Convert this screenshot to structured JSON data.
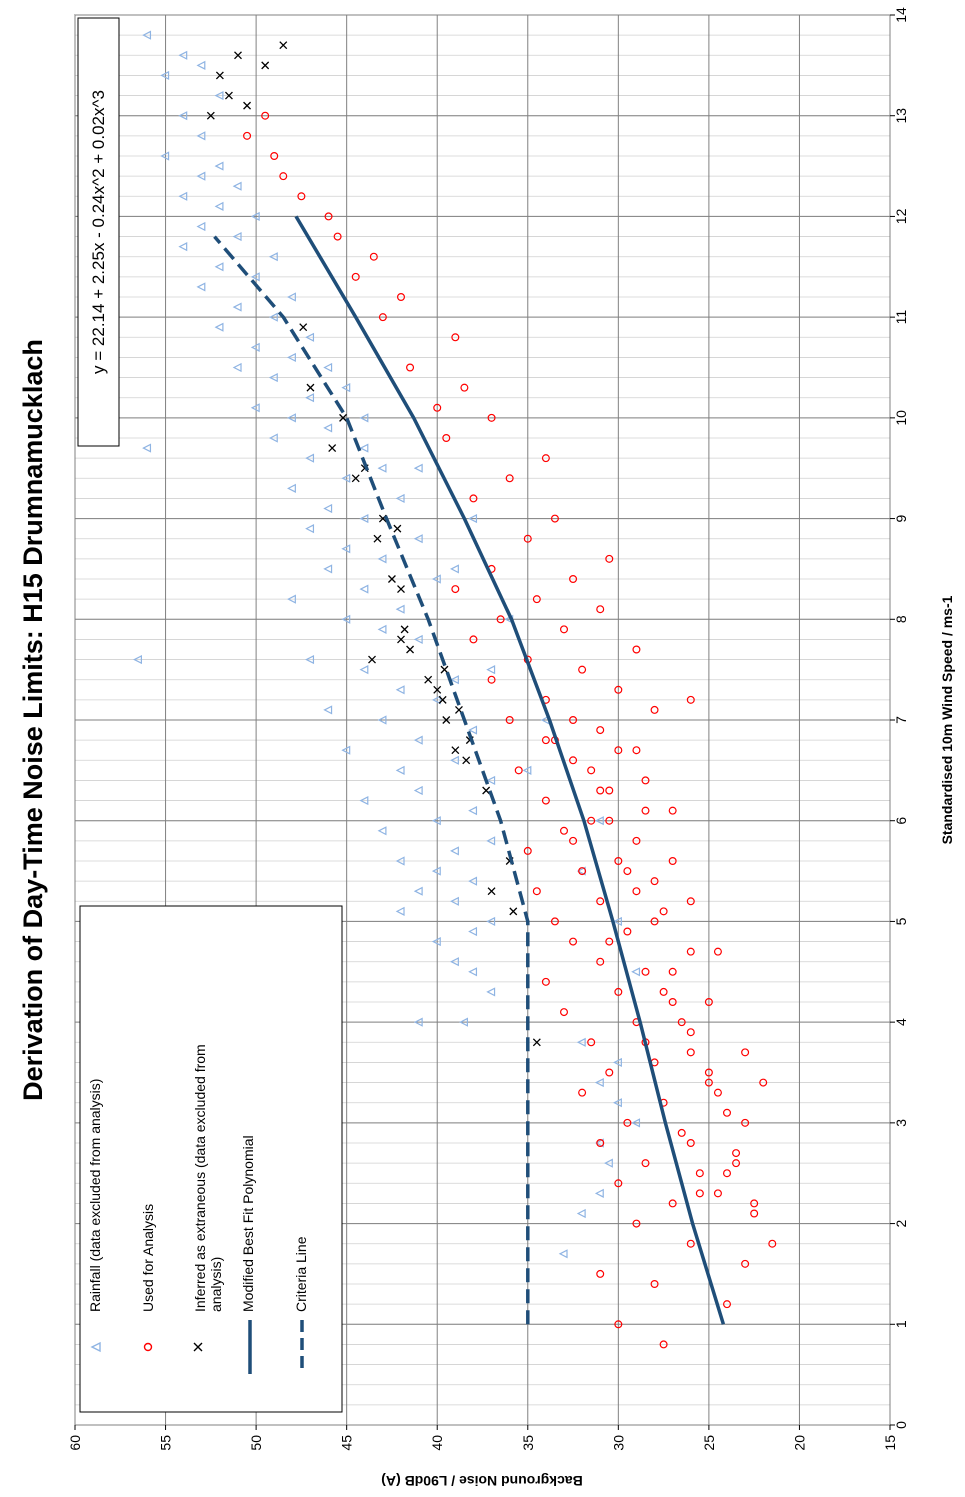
{
  "chart_data": {
    "type": "scatter",
    "title": "Derivation of Day-Time Noise Limits: H15 Drumnamucklach",
    "xlabel": "Standardised 10m Wind Speed / ms-1",
    "ylabel": "Background Noise / L90dB (A)",
    "xlim": [
      0,
      14
    ],
    "ylim": [
      15,
      60
    ],
    "x_ticks": [
      "0",
      "1",
      "2",
      "3",
      "4",
      "5",
      "6",
      "7",
      "8",
      "9",
      "10",
      "11",
      "12",
      "13",
      "14"
    ],
    "y_ticks": [
      "15",
      "20",
      "25",
      "30",
      "35",
      "40",
      "45",
      "50",
      "55",
      "60"
    ],
    "x_minor_step": 0.2,
    "grid": true,
    "orientation": "rotated-90-clockwise",
    "equation": "y = 22.14 + 2.25x - 0.24x^2 + 0.02x^3",
    "legend": {
      "placement": "bottom-left",
      "items": [
        {
          "label": "Rainfall (data excluded from analysis)",
          "marker": "triangle-icon",
          "color": "#8fb4e3"
        },
        {
          "label": "Used for Analysis",
          "marker": "circle-icon",
          "color": "#ff0000"
        },
        {
          "label": "Inferred as extraneous (data excluded from analysis)",
          "marker": "cross-icon",
          "color": "#000000"
        },
        {
          "label": "Modified Best Fit Polynomial",
          "marker": "solid-line-icon",
          "color": "#1f4e79"
        },
        {
          "label": "Criteria Line",
          "marker": "dashed-line-icon",
          "color": "#1f4e79"
        }
      ]
    },
    "series": [
      {
        "name": "Rainfall (data excluded from analysis)",
        "kind": "scatter",
        "marker": "triangle",
        "color": "#8fb4e3",
        "x": [
          1.7,
          2.1,
          2.3,
          2.6,
          2.8,
          3.0,
          3.2,
          3.4,
          3.6,
          3.8,
          4.0,
          4.0,
          4.3,
          4.5,
          4.6,
          4.8,
          4.9,
          5.0,
          5.1,
          5.2,
          5.3,
          5.4,
          5.5,
          5.6,
          5.7,
          5.8,
          5.9,
          6.0,
          6.1,
          6.2,
          6.3,
          6.4,
          6.5,
          6.6,
          6.7,
          6.8,
          6.9,
          7.0,
          7.1,
          7.2,
          7.3,
          7.4,
          7.5,
          7.6,
          7.6,
          7.8,
          7.9,
          8.0,
          8.1,
          8.2,
          8.3,
          8.4,
          8.5,
          8.6,
          8.7,
          8.8,
          8.9,
          9.0,
          9.1,
          9.2,
          9.3,
          9.4,
          9.5,
          9.6,
          9.7,
          9.7,
          9.8,
          9.9,
          10.0,
          10.0,
          10.1,
          10.2,
          10.3,
          10.4,
          10.5,
          10.5,
          10.6,
          10.7,
          10.8,
          10.9,
          11.0,
          11.1,
          11.2,
          11.3,
          11.4,
          11.5,
          11.6,
          11.7,
          11.8,
          11.9,
          12.0,
          12.1,
          12.2,
          12.3,
          12.4,
          12.5,
          12.6,
          12.8,
          13.0,
          13.2,
          13.4,
          13.5,
          13.6,
          13.8,
          5.0,
          6.0,
          7.0,
          8.0,
          9.0,
          4.5,
          5.5,
          6.5,
          7.5,
          8.5,
          9.5
        ],
        "y": [
          33.0,
          32.0,
          31.0,
          30.5,
          31.0,
          29.0,
          30.0,
          31.0,
          30.0,
          32.0,
          41.0,
          38.5,
          37.0,
          38.0,
          39.0,
          40.0,
          38.0,
          37.0,
          42.0,
          39.0,
          41.0,
          38.0,
          40.0,
          42.0,
          39.0,
          37.0,
          43.0,
          40.0,
          38.0,
          44.0,
          41.0,
          37.0,
          42.0,
          39.0,
          45.0,
          41.0,
          38.0,
          43.0,
          46.0,
          40.0,
          42.0,
          39.0,
          44.0,
          47.0,
          56.5,
          41.0,
          43.0,
          45.0,
          42.0,
          48.0,
          44.0,
          40.0,
          46.0,
          43.0,
          45.0,
          41.0,
          47.0,
          44.0,
          46.0,
          42.0,
          48.0,
          45.0,
          43.0,
          47.0,
          56.0,
          44.0,
          49.0,
          46.0,
          48.0,
          44.0,
          50.0,
          47.0,
          45.0,
          49.0,
          51.0,
          46.0,
          48.0,
          50.0,
          47.0,
          52.0,
          49.0,
          51.0,
          48.0,
          53.0,
          50.0,
          52.0,
          49.0,
          54.0,
          51.0,
          53.0,
          50.0,
          52.0,
          54.0,
          51.0,
          53.0,
          52.0,
          55.0,
          53.0,
          54.0,
          52.0,
          55.0,
          53.0,
          54.0,
          56.0,
          30.0,
          31.0,
          34.0,
          36.0,
          38.0,
          29.0,
          32.0,
          35.0,
          37.0,
          39.0,
          41.0
        ]
      },
      {
        "name": "Used for Analysis",
        "kind": "scatter",
        "marker": "circle",
        "color": "#ff0000",
        "x": [
          0.8,
          1.0,
          1.2,
          1.4,
          1.5,
          1.6,
          1.8,
          2.0,
          2.1,
          2.2,
          2.3,
          2.4,
          2.5,
          2.6,
          2.7,
          2.8,
          2.9,
          3.0,
          3.1,
          3.2,
          3.3,
          3.4,
          3.5,
          3.6,
          3.7,
          3.8,
          3.9,
          4.0,
          4.1,
          4.2,
          4.3,
          4.4,
          4.5,
          4.6,
          4.7,
          4.8,
          4.9,
          5.0,
          5.1,
          5.2,
          5.3,
          5.4,
          5.5,
          5.6,
          5.7,
          5.8,
          5.9,
          6.0,
          6.1,
          6.2,
          6.3,
          6.4,
          6.5,
          6.6,
          6.7,
          6.8,
          6.9,
          7.0,
          7.1,
          7.2,
          7.3,
          7.4,
          7.5,
          7.6,
          7.7,
          7.8,
          7.9,
          8.0,
          8.1,
          8.2,
          8.3,
          8.4,
          8.5,
          8.6,
          8.8,
          9.0,
          9.2,
          9.4,
          9.6,
          9.8,
          10.0,
          10.1,
          10.3,
          10.5,
          10.8,
          11.0,
          11.2,
          11.4,
          11.6,
          11.8,
          12.0,
          12.2,
          12.4,
          12.6,
          12.8,
          13.0,
          2.2,
          2.5,
          3.0,
          3.5,
          4.0,
          4.5,
          5.0,
          5.5,
          6.0,
          6.5,
          7.0,
          2.3,
          2.8,
          3.3,
          3.8,
          4.3,
          4.8,
          5.3,
          5.8,
          6.3,
          6.8,
          7.2,
          1.8,
          2.6,
          3.4,
          4.2,
          5.6,
          6.1,
          6.7,
          5.2,
          4.7,
          3.7
        ],
        "y": [
          27.5,
          30.0,
          24.0,
          28.0,
          31.0,
          23.0,
          26.0,
          29.0,
          22.5,
          27.0,
          24.5,
          30.0,
          25.5,
          28.5,
          23.5,
          31.0,
          26.5,
          29.5,
          24.0,
          27.5,
          32.0,
          25.0,
          30.5,
          28.0,
          23.0,
          31.5,
          26.0,
          29.0,
          33.0,
          27.0,
          30.0,
          34.0,
          28.5,
          31.0,
          26.0,
          32.5,
          29.5,
          33.5,
          27.5,
          31.0,
          34.5,
          28.0,
          32.0,
          30.0,
          35.0,
          29.0,
          33.0,
          31.5,
          27.0,
          34.0,
          30.5,
          28.5,
          35.5,
          32.5,
          29.0,
          33.5,
          31.0,
          36.0,
          28.0,
          34.0,
          30.0,
          37.0,
          32.0,
          35.0,
          29.0,
          38.0,
          33.0,
          36.5,
          31.0,
          34.5,
          39.0,
          32.5,
          37.0,
          30.5,
          35.0,
          33.5,
          38.0,
          36.0,
          34.0,
          39.5,
          37.0,
          40.0,
          38.5,
          41.5,
          39.0,
          43.0,
          42.0,
          44.5,
          43.5,
          45.5,
          46.0,
          47.5,
          48.5,
          49.0,
          50.5,
          49.5,
          22.5,
          24.0,
          23.0,
          25.0,
          26.5,
          27.0,
          28.0,
          29.5,
          30.5,
          31.5,
          32.5,
          25.5,
          26.0,
          24.5,
          28.5,
          27.5,
          30.5,
          29.0,
          32.5,
          31.0,
          34.0,
          26.0,
          21.5,
          23.5,
          22.0,
          25.0,
          27.0,
          28.5,
          30.0,
          26.0,
          24.5,
          26.0
        ]
      },
      {
        "name": "Inferred as extraneous (data excluded from analysis)",
        "kind": "scatter",
        "marker": "cross",
        "color": "#000000",
        "x": [
          3.8,
          5.1,
          5.3,
          5.6,
          6.3,
          6.6,
          6.7,
          6.8,
          7.0,
          7.1,
          7.2,
          7.3,
          7.4,
          7.5,
          7.6,
          7.7,
          7.8,
          7.9,
          8.3,
          8.4,
          8.8,
          8.9,
          9.0,
          9.4,
          9.5,
          9.7,
          10.0,
          10.3,
          10.9,
          13.0,
          13.1,
          13.2,
          13.4,
          13.5,
          13.6,
          13.7
        ],
        "y": [
          34.5,
          35.8,
          37.0,
          36.0,
          37.3,
          38.4,
          39.0,
          38.2,
          39.5,
          38.8,
          39.7,
          40.0,
          40.5,
          39.6,
          43.6,
          41.5,
          42.0,
          41.8,
          42.0,
          42.5,
          43.3,
          42.2,
          43.0,
          44.5,
          44.0,
          45.8,
          45.2,
          47.0,
          47.4,
          52.5,
          50.5,
          51.5,
          52.0,
          49.5,
          51.0,
          48.5
        ]
      },
      {
        "name": "Modified Best Fit Polynomial",
        "kind": "line",
        "style": "solid",
        "color": "#1f4e79",
        "x": [
          1,
          2,
          3,
          4,
          5,
          6,
          7,
          8,
          9,
          10,
          11,
          12
        ],
        "y": [
          24.2,
          25.9,
          27.4,
          28.8,
          30.3,
          31.9,
          33.8,
          35.9,
          38.5,
          41.3,
          44.5,
          47.8
        ]
      },
      {
        "name": "Criteria Line",
        "kind": "line",
        "style": "dashed",
        "color": "#1f4e79",
        "x": [
          1,
          2,
          3,
          4,
          5,
          6,
          7,
          8,
          9,
          10,
          11,
          11.8
        ],
        "y": [
          35.0,
          35.0,
          35.0,
          35.0,
          35.0,
          36.5,
          38.5,
          40.5,
          42.8,
          45.0,
          48.5,
          52.3
        ]
      }
    ]
  }
}
